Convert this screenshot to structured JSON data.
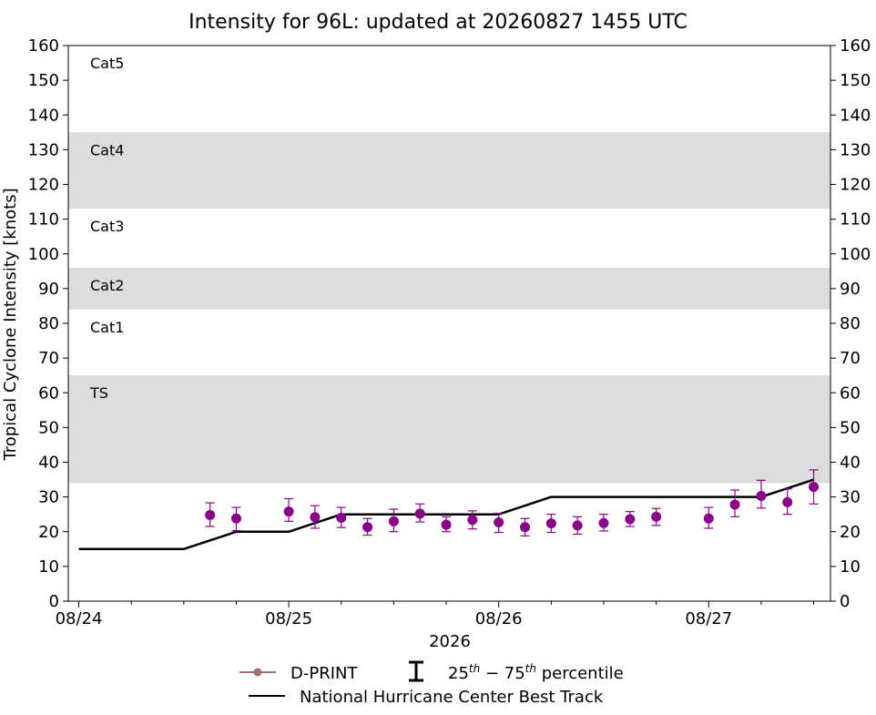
{
  "chart_data": {
    "type": "line",
    "title": "Intensity for 96L: updated at 20260827 1455 UTC",
    "ylabel": "Tropical Cyclone Intensity [knots]",
    "xlabel": "2026",
    "ylim": [
      0,
      160
    ],
    "xlim_days": [
      -0.05,
      3.58
    ],
    "y_ticks": [
      0,
      10,
      20,
      30,
      40,
      50,
      60,
      70,
      80,
      90,
      100,
      110,
      120,
      130,
      140,
      150,
      160
    ],
    "x_ticks": [
      {
        "label": "08/24",
        "day": 0
      },
      {
        "label": "08/25",
        "day": 1
      },
      {
        "label": "08/26",
        "day": 2
      },
      {
        "label": "08/27",
        "day": 3
      }
    ],
    "x_minor_days": [
      0.25,
      0.5,
      0.75,
      1.25,
      1.5,
      1.75,
      2.25,
      2.5,
      2.75,
      3.25,
      3.5
    ],
    "category_bands": [
      {
        "name": "TS",
        "low": 34,
        "high": 65,
        "shaded": true
      },
      {
        "name": "Cat1",
        "low": 65,
        "high": 84,
        "shaded": false
      },
      {
        "name": "Cat2",
        "low": 84,
        "high": 96,
        "shaded": true
      },
      {
        "name": "Cat3",
        "low": 96,
        "high": 113,
        "shaded": false
      },
      {
        "name": "Cat4",
        "low": 113,
        "high": 135,
        "shaded": true
      },
      {
        "name": "Cat5",
        "low": 135,
        "high": 160,
        "shaded": false
      }
    ],
    "series": [
      {
        "name": "National Hurricane Center Best Track",
        "color": "#000000",
        "points": [
          {
            "day": 0.0,
            "value": 15
          },
          {
            "day": 0.5,
            "value": 15
          },
          {
            "day": 0.75,
            "value": 20
          },
          {
            "day": 1.0,
            "value": 20
          },
          {
            "day": 1.25,
            "value": 25
          },
          {
            "day": 2.0,
            "value": 25
          },
          {
            "day": 2.25,
            "value": 30
          },
          {
            "day": 3.25,
            "value": 30
          },
          {
            "day": 3.5,
            "value": 35
          }
        ]
      },
      {
        "name": "D-PRINT",
        "color": "#8b008b",
        "legend_color": "#a07070",
        "points": [
          {
            "day": 0.625,
            "value": 24.8,
            "p25": 21.5,
            "p75": 28.3
          },
          {
            "day": 0.75,
            "value": 23.8,
            "p25": 20.3,
            "p75": 27.0
          },
          {
            "day": 1.0,
            "value": 25.8,
            "p25": 23.0,
            "p75": 29.5
          },
          {
            "day": 1.125,
            "value": 24.2,
            "p25": 21.0,
            "p75": 27.5
          },
          {
            "day": 1.25,
            "value": 24.0,
            "p25": 21.2,
            "p75": 27.0
          },
          {
            "day": 1.375,
            "value": 21.3,
            "p25": 19.0,
            "p75": 23.8
          },
          {
            "day": 1.5,
            "value": 23.0,
            "p25": 20.0,
            "p75": 26.5
          },
          {
            "day": 1.625,
            "value": 25.2,
            "p25": 22.8,
            "p75": 28.0
          },
          {
            "day": 1.75,
            "value": 22.0,
            "p25": 20.0,
            "p75": 24.3
          },
          {
            "day": 1.875,
            "value": 23.4,
            "p25": 20.8,
            "p75": 26.0
          },
          {
            "day": 2.0,
            "value": 22.7,
            "p25": 19.8,
            "p75": 25.3
          },
          {
            "day": 2.125,
            "value": 21.3,
            "p25": 18.8,
            "p75": 23.8
          },
          {
            "day": 2.25,
            "value": 22.4,
            "p25": 19.8,
            "p75": 25.0
          },
          {
            "day": 2.375,
            "value": 21.8,
            "p25": 19.3,
            "p75": 24.3
          },
          {
            "day": 2.5,
            "value": 22.5,
            "p25": 20.2,
            "p75": 25.0
          },
          {
            "day": 2.625,
            "value": 23.6,
            "p25": 21.5,
            "p75": 25.8
          },
          {
            "day": 2.75,
            "value": 24.3,
            "p25": 21.8,
            "p75": 26.7
          },
          {
            "day": 3.0,
            "value": 23.8,
            "p25": 21.0,
            "p75": 27.0
          },
          {
            "day": 3.125,
            "value": 27.8,
            "p25": 24.3,
            "p75": 32.0
          },
          {
            "day": 3.25,
            "value": 30.3,
            "p25": 26.8,
            "p75": 34.8
          },
          {
            "day": 3.375,
            "value": 28.5,
            "p25": 25.0,
            "p75": 32.3
          },
          {
            "day": 3.5,
            "value": 32.9,
            "p25": 28.0,
            "p75": 37.8
          }
        ]
      }
    ],
    "legend": {
      "placement": "bottom-center",
      "dprint_label": "D-PRINT",
      "percentile_label_pre": "25",
      "percentile_sup1": "th",
      "percentile_mid": " − 75",
      "percentile_sup2": "th",
      "percentile_post": " percentile",
      "besttrack_label": "National Hurricane Center Best Track"
    },
    "colors": {
      "band_fill": "#dcdcdc",
      "dprint": "#8b008b",
      "dprint_legend": "#a07070",
      "best_track": "#000000"
    },
    "grid": false
  }
}
